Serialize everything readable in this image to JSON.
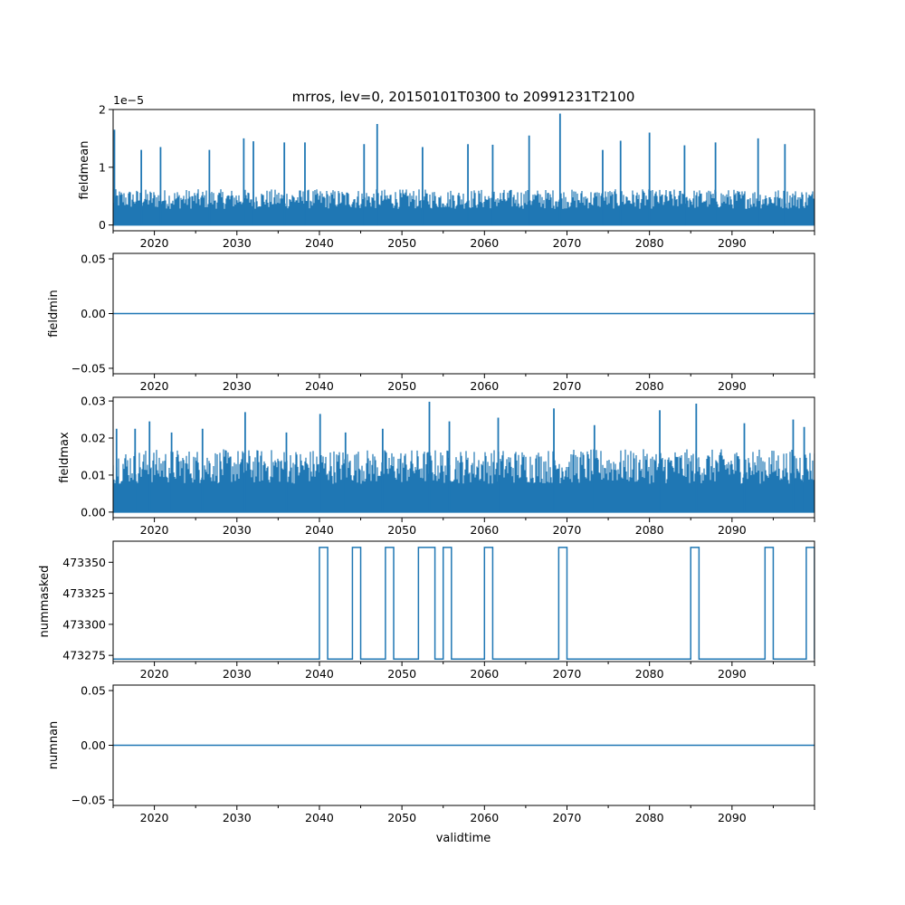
{
  "figure": {
    "title": "mrros, lev=0, 20150101T0300 to 20991231T2100",
    "xlabel": "validtime"
  },
  "colors": {
    "series": "#1f77b4",
    "axes": "#000000",
    "background": "#ffffff"
  },
  "chart_data": [
    {
      "type": "line",
      "ylabel": "fieldmean",
      "x_range": [
        "2015-01-01",
        "2099-12-31"
      ],
      "xticks": [
        "2020",
        "2030",
        "2040",
        "2050",
        "2060",
        "2070",
        "2080",
        "2090"
      ],
      "ylim": [
        -1e-06,
        2e-05
      ],
      "yticks": [
        "0",
        "1",
        "2"
      ],
      "offset_text": "1e−5",
      "grid": false,
      "note": "dense high-frequency series between 0 and ~0.6e-5 with spikes",
      "baseline_band": [
        0,
        6.2e-06
      ],
      "spikes": [
        {
          "x": "2015-03-01",
          "y": 1.65e-05
        },
        {
          "x": "2018-06-01",
          "y": 1.3e-05
        },
        {
          "x": "2020-10-01",
          "y": 1.35e-05
        },
        {
          "x": "2026-09-01",
          "y": 1.3e-05
        },
        {
          "x": "2030-11-01",
          "y": 1.5e-05
        },
        {
          "x": "2032-01-01",
          "y": 1.45e-05
        },
        {
          "x": "2035-10-01",
          "y": 1.43e-05
        },
        {
          "x": "2038-04-01",
          "y": 1.43e-05
        },
        {
          "x": "2045-06-01",
          "y": 1.4e-05
        },
        {
          "x": "2047-01-01",
          "y": 1.75e-05
        },
        {
          "x": "2052-07-01",
          "y": 1.35e-05
        },
        {
          "x": "2058-01-01",
          "y": 1.4e-05
        },
        {
          "x": "2061-01-01",
          "y": 1.39e-05
        },
        {
          "x": "2065-06-01",
          "y": 1.55e-05
        },
        {
          "x": "2069-03-01",
          "y": 1.93e-05
        },
        {
          "x": "2074-05-01",
          "y": 1.3e-05
        },
        {
          "x": "2076-07-01",
          "y": 1.46e-05
        },
        {
          "x": "2080-01-01",
          "y": 1.6e-05
        },
        {
          "x": "2084-04-01",
          "y": 1.38e-05
        },
        {
          "x": "2088-01-01",
          "y": 1.43e-05
        },
        {
          "x": "2093-03-01",
          "y": 1.5e-05
        },
        {
          "x": "2096-06-01",
          "y": 1.4e-05
        }
      ]
    },
    {
      "type": "line",
      "ylabel": "fieldmin",
      "x_range": [
        "2015-01-01",
        "2099-12-31"
      ],
      "xticks": [
        "2020",
        "2030",
        "2040",
        "2050",
        "2060",
        "2070",
        "2080",
        "2090"
      ],
      "ylim": [
        -0.055,
        0.055
      ],
      "yticks": [
        "−0.05",
        "0.00",
        "0.05"
      ],
      "grid": false,
      "constant_value": 0.0
    },
    {
      "type": "line",
      "ylabel": "fieldmax",
      "x_range": [
        "2015-01-01",
        "2099-12-31"
      ],
      "xticks": [
        "2020",
        "2030",
        "2040",
        "2050",
        "2060",
        "2070",
        "2080",
        "2090"
      ],
      "ylim": [
        -0.0015,
        0.031
      ],
      "yticks": [
        "0.00",
        "0.01",
        "0.02",
        "0.03"
      ],
      "grid": false,
      "note": "dense high-frequency series between 0 and ~0.017 with spikes",
      "baseline_band": [
        0,
        0.017
      ],
      "spikes": [
        {
          "x": "2015-06-01",
          "y": 0.0225
        },
        {
          "x": "2017-09-01",
          "y": 0.0225
        },
        {
          "x": "2019-06-01",
          "y": 0.0245
        },
        {
          "x": "2022-02-01",
          "y": 0.0215
        },
        {
          "x": "2025-11-01",
          "y": 0.0225
        },
        {
          "x": "2031-01-01",
          "y": 0.027
        },
        {
          "x": "2036-01-01",
          "y": 0.0215
        },
        {
          "x": "2040-02-01",
          "y": 0.0265
        },
        {
          "x": "2043-03-01",
          "y": 0.0215
        },
        {
          "x": "2047-09-01",
          "y": 0.0225
        },
        {
          "x": "2053-05-01",
          "y": 0.0298
        },
        {
          "x": "2055-10-01",
          "y": 0.0245
        },
        {
          "x": "2061-09-01",
          "y": 0.0255
        },
        {
          "x": "2068-06-01",
          "y": 0.028
        },
        {
          "x": "2073-05-01",
          "y": 0.0235
        },
        {
          "x": "2081-04-01",
          "y": 0.0275
        },
        {
          "x": "2085-09-01",
          "y": 0.0293
        },
        {
          "x": "2091-07-01",
          "y": 0.024
        },
        {
          "x": "2097-06-01",
          "y": 0.025
        },
        {
          "x": "2098-10-01",
          "y": 0.023
        }
      ]
    },
    {
      "type": "line",
      "ylabel": "nummasked",
      "x_range": [
        "2015-01-01",
        "2099-12-31"
      ],
      "xticks": [
        "2020",
        "2030",
        "2040",
        "2050",
        "2060",
        "2070",
        "2080",
        "2090"
      ],
      "ylim": [
        473270,
        473367
      ],
      "yticks": [
        "473275",
        "473300",
        "473325",
        "473350"
      ],
      "grid": false,
      "low_value": 473272,
      "high_value": 473362,
      "high_intervals": [
        [
          "2040-01-01",
          "2041-01-01"
        ],
        [
          "2044-01-01",
          "2045-01-01"
        ],
        [
          "2048-01-01",
          "2049-01-01"
        ],
        [
          "2052-01-01",
          "2054-01-01"
        ],
        [
          "2055-01-01",
          "2056-01-01"
        ],
        [
          "2060-01-01",
          "2061-01-01"
        ],
        [
          "2069-01-01",
          "2070-01-01"
        ],
        [
          "2085-01-01",
          "2086-01-01"
        ],
        [
          "2094-01-01",
          "2095-01-01"
        ],
        [
          "2099-01-01",
          "2099-12-31"
        ]
      ]
    },
    {
      "type": "line",
      "ylabel": "numnan",
      "x_range": [
        "2015-01-01",
        "2099-12-31"
      ],
      "xticks": [
        "2020",
        "2030",
        "2040",
        "2050",
        "2060",
        "2070",
        "2080",
        "2090"
      ],
      "ylim": [
        -0.055,
        0.055
      ],
      "yticks": [
        "−0.05",
        "0.00",
        "0.05"
      ],
      "grid": false,
      "constant_value": 0.0
    }
  ]
}
